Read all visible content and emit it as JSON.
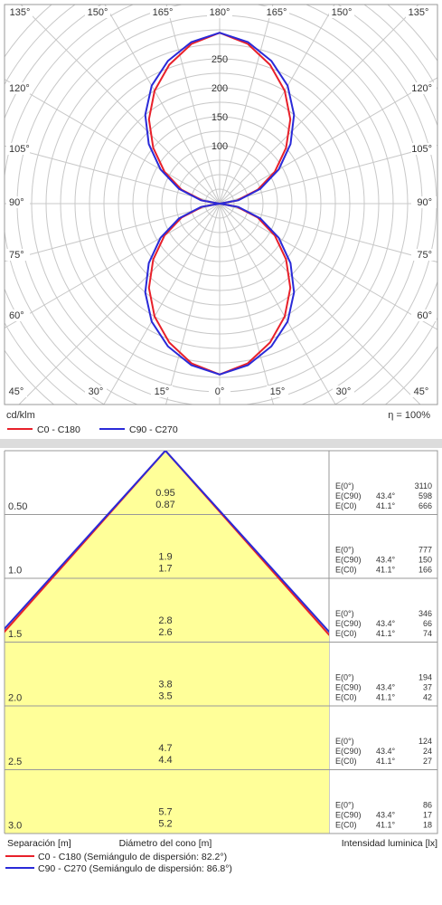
{
  "polar": {
    "unit_label": "cd/klm",
    "efficiency_label": "η = 100%",
    "angle_labels_top": [
      "135°",
      "150°",
      "165°",
      "180°",
      "165°",
      "150°",
      "135°"
    ],
    "angle_labels_side": [
      "120°",
      "105°",
      "90°",
      "75°",
      "60°"
    ],
    "angle_labels_bottom": [
      "45°",
      "30°",
      "15°",
      "0°",
      "15°",
      "30°",
      "45°"
    ],
    "radial_labels": [
      "100",
      "150",
      "200",
      "250"
    ],
    "legend": [
      {
        "label": "C0 - C180",
        "color": "#e8202a"
      },
      {
        "label": "C90 - C270",
        "color": "#2a2ad8"
      }
    ]
  },
  "chart_data": [
    {
      "type": "line",
      "subtype": "polar",
      "unit": "cd/klm",
      "efficiency": "η = 100%",
      "rlim": [
        0,
        300
      ],
      "radial_ticks": [
        100,
        150,
        200,
        250
      ],
      "angle_ticks_deg": [
        0,
        15,
        30,
        45,
        60,
        75,
        90,
        105,
        120,
        135,
        150,
        165,
        180
      ],
      "series": [
        {
          "name": "C0 - C180",
          "color": "#e8202a",
          "angles_deg": [
            0,
            10,
            20,
            30,
            40,
            50,
            60,
            70,
            80,
            90
          ],
          "values": [
            295,
            280,
            255,
            225,
            190,
            150,
            110,
            70,
            30,
            0
          ]
        },
        {
          "name": "C90 - C270",
          "color": "#2a2ad8",
          "angles_deg": [
            0,
            10,
            20,
            30,
            40,
            50,
            60,
            70,
            80,
            90
          ],
          "values": [
            295,
            283,
            262,
            235,
            200,
            160,
            118,
            75,
            33,
            0
          ]
        }
      ]
    },
    {
      "type": "table",
      "subtype": "illuminance-cone",
      "columns": [
        "Separación [m]",
        "Diámetro del cono [m]",
        "Intensidad luminica [lx]"
      ],
      "rows": [
        {
          "distance": "0.50",
          "d_c90": "0.95",
          "d_c0": "0.87",
          "e0": "3110",
          "e_c90": "598",
          "e_c0": "666"
        },
        {
          "distance": "1.0",
          "d_c90": "1.9",
          "d_c0": "1.7",
          "e0": "777",
          "e_c90": "150",
          "e_c0": "166"
        },
        {
          "distance": "1.5",
          "d_c90": "2.8",
          "d_c0": "2.6",
          "e0": "346",
          "e_c90": "66",
          "e_c0": "74"
        },
        {
          "distance": "2.0",
          "d_c90": "3.8",
          "d_c0": "3.5",
          "e0": "194",
          "e_c90": "37",
          "e_c0": "42"
        },
        {
          "distance": "2.5",
          "d_c90": "4.7",
          "d_c0": "4.4",
          "e0": "124",
          "e_c90": "24",
          "e_c0": "27"
        },
        {
          "distance": "3.0",
          "d_c90": "5.7",
          "d_c0": "5.2",
          "e0": "86",
          "e_c90": "17",
          "e_c0": "18"
        }
      ],
      "half_angle_c90": "43.4°",
      "half_angle_c0": "41.1°",
      "series": [
        {
          "name": "C0 - C180 (Semiángulo de dispersión: 82.2°)",
          "color": "#e8202a"
        },
        {
          "name": "C90 - C270 (Semiángulo de dispersión: 86.8°)",
          "color": "#2a2ad8"
        }
      ]
    }
  ],
  "cone": {
    "row_labels": {
      "e0": "E(0°)",
      "e_c90": "E(C90)",
      "e_c0": "E(C0)"
    },
    "footer_labels": {
      "separation": "Separación [m]",
      "diameter": "Diámetro del cono [m]",
      "intensity": "Intensidad luminica [lx]"
    },
    "legend": [
      {
        "label": "C0 - C180 (Semiángulo de dispersión: 82.2°)",
        "color": "#e8202a"
      },
      {
        "label": "C90 - C270 (Semiángulo de dispersión: 86.8°)",
        "color": "#2a2ad8"
      }
    ],
    "fill_color": "#ffff99"
  }
}
